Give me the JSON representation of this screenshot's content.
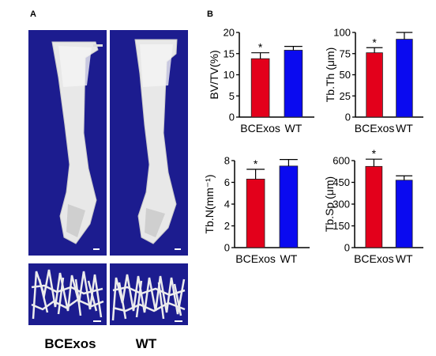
{
  "panels": {
    "a": "A",
    "b": "B"
  },
  "images": {
    "labels": [
      "BCExos",
      "WT"
    ],
    "background_color": "#1c1c8f",
    "bone_color": "#e8e8e8"
  },
  "colors": {
    "bcexos": "#e3001b",
    "wt": "#0a0af0"
  },
  "chart_data": [
    {
      "type": "bar",
      "categories": [
        "BCExos",
        "WT"
      ],
      "ylabel": "BV/TV(%)",
      "ylim": [
        0,
        20
      ],
      "yticks": [
        0,
        5,
        10,
        15,
        20
      ],
      "values": [
        13.8,
        15.8
      ],
      "errors": [
        1.4,
        0.9
      ],
      "significance": [
        "*",
        ""
      ]
    },
    {
      "type": "bar",
      "categories": [
        "BCExos",
        "WT"
      ],
      "ylabel": "Tb.Th (μm)",
      "ylim": [
        0,
        100
      ],
      "yticks": [
        0,
        25,
        50,
        75,
        100
      ],
      "values": [
        76,
        92
      ],
      "errors": [
        6,
        8
      ],
      "significance": [
        "*",
        ""
      ]
    },
    {
      "type": "bar",
      "categories": [
        "BCExos",
        "WT"
      ],
      "ylabel": "Tb.N(mm⁻¹)",
      "ylim": [
        0,
        8
      ],
      "yticks": [
        0,
        2,
        4,
        6,
        8
      ],
      "values": [
        6.3,
        7.5
      ],
      "errors": [
        0.9,
        0.6
      ],
      "significance": [
        "*",
        ""
      ]
    },
    {
      "type": "bar",
      "categories": [
        "BCExos",
        "WT"
      ],
      "ylabel": "Tb.Sp (μm)",
      "ylim": [
        0,
        600
      ],
      "yticks": [
        0,
        150,
        300,
        450,
        600
      ],
      "values": [
        560,
        465
      ],
      "errors": [
        50,
        30
      ],
      "significance": [
        "*",
        ""
      ]
    }
  ]
}
